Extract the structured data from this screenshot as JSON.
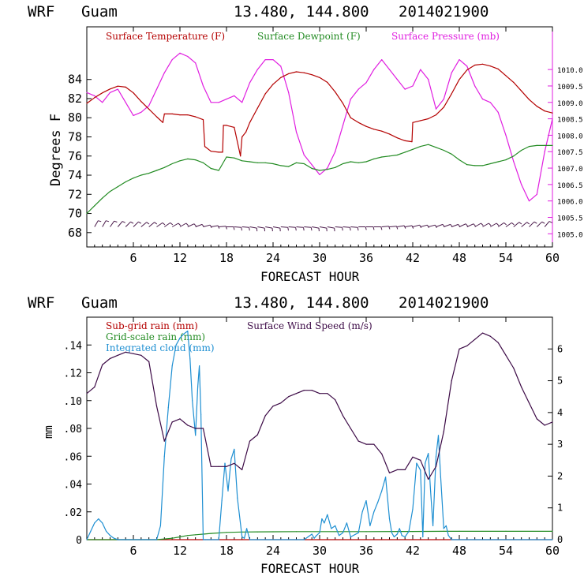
{
  "colors": {
    "axis": "#000000",
    "temperature": "#b40000",
    "dewpoint": "#228b22",
    "pressure": "#e01ee0",
    "subgrid_rain": "#b40000",
    "gridscale_rain": "#228b22",
    "cloud": "#1e8fd2",
    "wind_speed": "#3c0a46",
    "wind_barb": "#4a1a4a"
  },
  "header_top": {
    "model": "WRF",
    "site": "Guam",
    "coords": "13.480, 144.800",
    "init": "2014021900"
  },
  "header_bottom": {
    "model": "WRF",
    "site": "Guam",
    "coords": "13.480, 144.800",
    "init": "2014021900"
  },
  "chart_data": [
    {
      "type": "line",
      "xlabel": "FORECAST HOUR",
      "ylabel": "Degrees F",
      "xlim": [
        0,
        60
      ],
      "ylim": [
        66.5,
        89.5
      ],
      "y2lim": [
        1004.6,
        1011.3
      ],
      "xticks": [
        "6",
        "12",
        "18",
        "24",
        "30",
        "36",
        "42",
        "48",
        "54",
        "60"
      ],
      "yticks": [
        "68",
        "70",
        "72",
        "74",
        "76",
        "78",
        "80",
        "82",
        "84"
      ],
      "y2ticks": [
        "1005.0",
        "1005.5",
        "1006.0",
        "1006.5",
        "1007.0",
        "1007.5",
        "1008.0",
        "1008.5",
        "1009.0",
        "1009.5",
        "1010.0"
      ],
      "legend": [
        "Surface Temperature (F)",
        "Surface Dewpoint (F)",
        "Surface Pressure (mb)"
      ],
      "legend_position": "top",
      "grid": false,
      "series": [
        {
          "name": "Surface Temperature (F)",
          "axis": "left",
          "x": [
            0,
            1,
            2,
            3,
            4,
            5,
            6,
            7,
            8,
            9,
            9.8,
            10,
            11,
            12,
            13,
            14,
            15,
            15.2,
            16,
            17,
            17.5,
            17.6,
            18,
            19,
            19.8,
            20,
            20.5,
            21,
            22,
            23,
            24,
            25,
            26,
            27,
            28,
            29,
            30,
            31,
            32,
            33,
            34,
            35,
            36,
            37,
            38,
            39,
            40,
            41,
            41.9,
            42,
            43,
            44,
            45,
            46,
            47,
            48,
            49,
            50,
            51,
            52,
            53,
            54,
            55,
            56,
            57,
            58,
            59,
            60
          ],
          "y": [
            81.5,
            82.1,
            82.6,
            83.0,
            83.3,
            83.2,
            82.6,
            81.7,
            80.9,
            80.1,
            79.5,
            80.4,
            80.4,
            80.3,
            80.3,
            80.1,
            79.8,
            77.0,
            76.5,
            76.4,
            76.4,
            79.2,
            79.2,
            79.0,
            76.0,
            78.0,
            78.5,
            79.5,
            81.0,
            82.5,
            83.5,
            84.2,
            84.6,
            84.8,
            84.7,
            84.5,
            84.2,
            83.7,
            82.7,
            81.5,
            80.0,
            79.5,
            79.1,
            78.8,
            78.6,
            78.3,
            77.9,
            77.6,
            77.5,
            79.5,
            79.7,
            79.9,
            80.3,
            81.1,
            82.5,
            84.0,
            85.0,
            85.5,
            85.6,
            85.4,
            85.1,
            84.4,
            83.7,
            82.8,
            81.9,
            81.2,
            80.7,
            80.5
          ]
        },
        {
          "name": "Surface Dewpoint (F)",
          "axis": "left",
          "x": [
            0,
            1,
            2,
            3,
            4,
            5,
            6,
            7,
            8,
            9,
            10,
            11,
            12,
            13,
            14,
            15,
            16,
            17,
            18,
            19,
            20,
            21,
            22,
            23,
            24,
            25,
            26,
            27,
            28,
            29,
            30,
            31,
            32,
            33,
            34,
            35,
            36,
            37,
            38,
            39,
            40,
            41,
            42,
            43,
            44,
            45,
            46,
            47,
            48,
            49,
            50,
            51,
            52,
            53,
            54,
            55,
            56,
            57,
            58,
            59,
            60
          ],
          "y": [
            70.0,
            70.8,
            71.6,
            72.3,
            72.8,
            73.3,
            73.7,
            74.0,
            74.2,
            74.5,
            74.8,
            75.2,
            75.5,
            75.7,
            75.6,
            75.3,
            74.7,
            74.5,
            75.9,
            75.8,
            75.5,
            75.4,
            75.3,
            75.3,
            75.2,
            75.0,
            74.9,
            75.3,
            75.2,
            74.7,
            74.5,
            74.6,
            74.8,
            75.2,
            75.4,
            75.3,
            75.4,
            75.7,
            75.9,
            76.0,
            76.1,
            76.4,
            76.7,
            77.0,
            77.2,
            76.9,
            76.6,
            76.2,
            75.6,
            75.1,
            75.0,
            75.0,
            75.2,
            75.4,
            75.6,
            76.0,
            76.6,
            77.0,
            77.1,
            77.1,
            77.1
          ]
        },
        {
          "name": "Surface Pressure (mb)",
          "axis": "right",
          "x": [
            0,
            1,
            2,
            3,
            4,
            5,
            6,
            7,
            8,
            9,
            10,
            11,
            12,
            13,
            14,
            15,
            16,
            17,
            18,
            19,
            20,
            21,
            22,
            23,
            24,
            25,
            26,
            27,
            28,
            29,
            30,
            31,
            32,
            33,
            34,
            35,
            36,
            37,
            38,
            39,
            40,
            41,
            42,
            43,
            44,
            45,
            46,
            47,
            48,
            49,
            50,
            51,
            52,
            53,
            54,
            55,
            56,
            57,
            58,
            59,
            60
          ],
          "y": [
            1009.3,
            1009.2,
            1009.0,
            1009.3,
            1009.4,
            1009.0,
            1008.6,
            1008.7,
            1008.9,
            1009.4,
            1009.9,
            1010.3,
            1010.5,
            1010.4,
            1010.2,
            1009.5,
            1009.0,
            1009.0,
            1009.1,
            1009.2,
            1009.0,
            1009.6,
            1010.0,
            1010.3,
            1010.3,
            1010.1,
            1009.3,
            1008.1,
            1007.4,
            1007.1,
            1006.8,
            1007.0,
            1007.5,
            1008.3,
            1009.1,
            1009.4,
            1009.6,
            1010.0,
            1010.3,
            1010.0,
            1009.7,
            1009.4,
            1009.5,
            1010.0,
            1009.7,
            1008.8,
            1009.1,
            1009.9,
            1010.3,
            1010.1,
            1009.5,
            1009.1,
            1009.0,
            1008.7,
            1008.0,
            1007.2,
            1006.5,
            1006.0,
            1006.2,
            1007.5,
            1008.5
          ]
        }
      ],
      "wind_barbs": {
        "value_level_f": 68.6,
        "x": [
          1,
          2,
          3,
          4,
          5,
          6,
          7,
          8,
          9,
          10,
          11,
          12,
          13,
          14,
          15,
          16,
          17,
          18,
          19,
          20,
          21,
          22,
          23,
          24,
          25,
          26,
          27,
          28,
          29,
          30,
          31,
          32,
          33,
          34,
          35,
          36,
          37,
          38,
          39,
          40,
          41,
          42,
          43,
          44,
          45,
          46,
          47,
          48,
          49,
          50,
          51,
          52,
          53,
          54,
          55,
          56,
          57,
          58,
          59
        ],
        "direction_deg": [
          30,
          30,
          35,
          40,
          45,
          45,
          50,
          50,
          55,
          55,
          60,
          60,
          65,
          70,
          75,
          80,
          85,
          90,
          95,
          95,
          100,
          100,
          100,
          100,
          95,
          95,
          95,
          95,
          100,
          100,
          100,
          95,
          95,
          95,
          90,
          90,
          90,
          85,
          85,
          80,
          80,
          75,
          75,
          75,
          70,
          70,
          70,
          65,
          65,
          60,
          60,
          60,
          55,
          55,
          50,
          50,
          45,
          45,
          40
        ]
      }
    },
    {
      "type": "line",
      "xlabel": "FORECAST HOUR",
      "ylabel": "mm",
      "xlim": [
        0,
        60
      ],
      "ylim": [
        0,
        0.16
      ],
      "y2lim": [
        0,
        7.0
      ],
      "xticks": [
        "6",
        "12",
        "18",
        "24",
        "30",
        "36",
        "42",
        "48",
        "54",
        "60"
      ],
      "yticks": [
        "0",
        ".02",
        ".04",
        ".06",
        ".08",
        ".10",
        ".12",
        ".14"
      ],
      "y2ticks": [
        "0",
        "1",
        "2",
        "3",
        "4",
        "5",
        "6"
      ],
      "legend": [
        "Sub-grid rain (mm)",
        "Surface Wind Speed (m/s)",
        "Grid-scale rain (mm)",
        "Integrated cloud (mm)"
      ],
      "legend_position": "top-left",
      "grid": false,
      "series": [
        {
          "name": "Sub-grid rain (mm)",
          "axis": "left",
          "x": [
            0,
            60
          ],
          "y": [
            0,
            0
          ]
        },
        {
          "name": "Grid-scale rain (mm)",
          "axis": "left",
          "x": [
            0,
            9,
            10,
            11,
            12,
            13,
            14,
            15,
            16,
            18,
            20,
            22,
            24,
            27,
            30,
            36,
            42,
            46,
            48,
            54,
            60
          ],
          "y": [
            0,
            0,
            0.0005,
            0.001,
            0.002,
            0.003,
            0.0035,
            0.004,
            0.0045,
            0.0052,
            0.0055,
            0.0056,
            0.0057,
            0.0058,
            0.0058,
            0.0058,
            0.0059,
            0.006,
            0.006,
            0.006,
            0.006
          ]
        },
        {
          "name": "Integrated cloud (mm)",
          "axis": "left",
          "x": [
            0,
            0.5,
            1,
            1.5,
            2,
            2.5,
            3,
            3.5,
            4,
            5,
            7,
            8,
            9,
            9.5,
            10,
            10.5,
            11,
            11.5,
            12,
            12.5,
            13,
            13.3,
            13.6,
            14,
            14.3,
            14.5,
            14.7,
            15,
            15.3,
            15.6,
            16,
            17,
            17.4,
            17.8,
            18.2,
            18.6,
            19,
            19.4,
            20,
            20.3,
            20.6,
            21,
            22,
            27,
            28,
            28.5,
            29,
            29.3,
            29.6,
            30,
            30.3,
            30.6,
            31,
            31.5,
            32,
            32.5,
            33,
            33.5,
            34,
            35,
            35.5,
            36,
            36.5,
            37,
            37.5,
            38,
            38.5,
            39,
            39.3,
            39.6,
            40,
            40.3,
            40.6,
            41,
            41.5,
            42,
            42.5,
            43,
            43.3,
            43.6,
            44,
            44.3,
            44.6,
            45,
            45.3,
            45.6,
            46,
            46.3,
            46.6,
            47,
            60
          ],
          "y": [
            0,
            0.006,
            0.012,
            0.015,
            0.012,
            0.006,
            0.003,
            0.001,
            0,
            0,
            0,
            0,
            0,
            0.01,
            0.06,
            0.095,
            0.125,
            0.14,
            0.145,
            0.148,
            0.15,
            0.13,
            0.1,
            0.075,
            0.11,
            0.125,
            0.09,
            0,
            0,
            0,
            0,
            0,
            0.028,
            0.055,
            0.035,
            0.058,
            0.065,
            0.03,
            0.002,
            0.001,
            0.008,
            0,
            0,
            0,
            0,
            0.002,
            0.004,
            0.001,
            0.003,
            0.005,
            0.015,
            0.012,
            0.018,
            0.008,
            0.01,
            0.003,
            0.005,
            0.012,
            0.002,
            0.005,
            0.02,
            0.028,
            0.01,
            0.02,
            0.027,
            0.035,
            0.045,
            0.015,
            0.005,
            0.002,
            0.004,
            0.008,
            0.003,
            0.002,
            0.006,
            0.022,
            0.055,
            0.05,
            0.002,
            0.055,
            0.062,
            0.035,
            0.01,
            0.06,
            0.075,
            0.045,
            0.008,
            0.01,
            0.003,
            0,
            0
          ]
        },
        {
          "name": "Surface Wind Speed (m/s)",
          "axis": "right",
          "x": [
            0,
            1,
            2,
            3,
            4,
            5,
            6,
            7,
            8,
            9,
            10,
            11,
            12,
            13,
            14,
            15,
            16,
            17,
            18,
            19,
            20,
            21,
            22,
            23,
            24,
            25,
            26,
            27,
            28,
            29,
            30,
            31,
            32,
            33,
            34,
            35,
            36,
            37,
            38,
            39,
            40,
            41,
            42,
            43,
            44,
            45,
            46,
            47,
            48,
            49,
            50,
            51,
            52,
            53,
            54,
            55,
            56,
            57,
            58,
            59,
            60
          ],
          "y": [
            4.6,
            4.8,
            5.5,
            5.7,
            5.8,
            5.9,
            5.85,
            5.8,
            5.6,
            4.2,
            3.1,
            3.7,
            3.8,
            3.6,
            3.5,
            3.5,
            2.3,
            2.3,
            2.3,
            2.4,
            2.2,
            3.1,
            3.3,
            3.9,
            4.2,
            4.3,
            4.5,
            4.6,
            4.7,
            4.7,
            4.6,
            4.6,
            4.4,
            3.9,
            3.5,
            3.1,
            3.0,
            3.0,
            2.7,
            2.1,
            2.2,
            2.2,
            2.6,
            2.5,
            1.9,
            2.3,
            3.4,
            5.0,
            6.0,
            6.1,
            6.3,
            6.5,
            6.4,
            6.2,
            5.8,
            5.4,
            4.8,
            4.3,
            3.8,
            3.6,
            3.7
          ]
        }
      ]
    }
  ]
}
